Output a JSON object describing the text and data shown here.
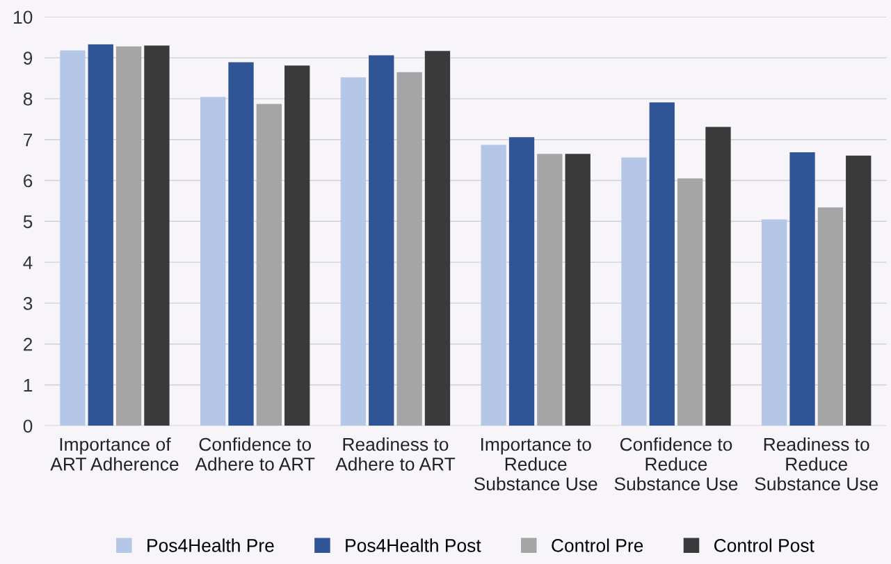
{
  "chart_data": {
    "type": "bar",
    "categories": [
      "Importance of\nART Adherence",
      "Confidence to\nAdhere to ART",
      "Readiness to\nAdhere to ART",
      "Importance to\nReduce\nSubstance Use",
      "Confidence to\nReduce\nSubstance Use",
      "Readiness to\nReduce\nSubstance Use"
    ],
    "series": [
      {
        "name": "Pos4Health Pre",
        "color": "#b4c7e7",
        "values": [
          9.18,
          8.04,
          8.52,
          6.87,
          6.56,
          5.05
        ]
      },
      {
        "name": "Pos4Health Post",
        "color": "#2f5597",
        "values": [
          9.33,
          8.89,
          9.06,
          7.06,
          7.91,
          6.69
        ]
      },
      {
        "name": "Control Pre",
        "color": "#a5a5a5",
        "values": [
          9.28,
          7.87,
          8.65,
          6.65,
          6.05,
          5.34
        ]
      },
      {
        "name": "Control Post",
        "color": "#3a3a3a",
        "values": [
          9.3,
          8.81,
          9.17,
          6.65,
          7.31,
          6.61
        ]
      }
    ],
    "ylim": [
      0,
      10
    ],
    "yticks": [
      0,
      1,
      2,
      3,
      4,
      5,
      6,
      7,
      8,
      9,
      10
    ],
    "grid": "y",
    "legend": "bottom"
  }
}
